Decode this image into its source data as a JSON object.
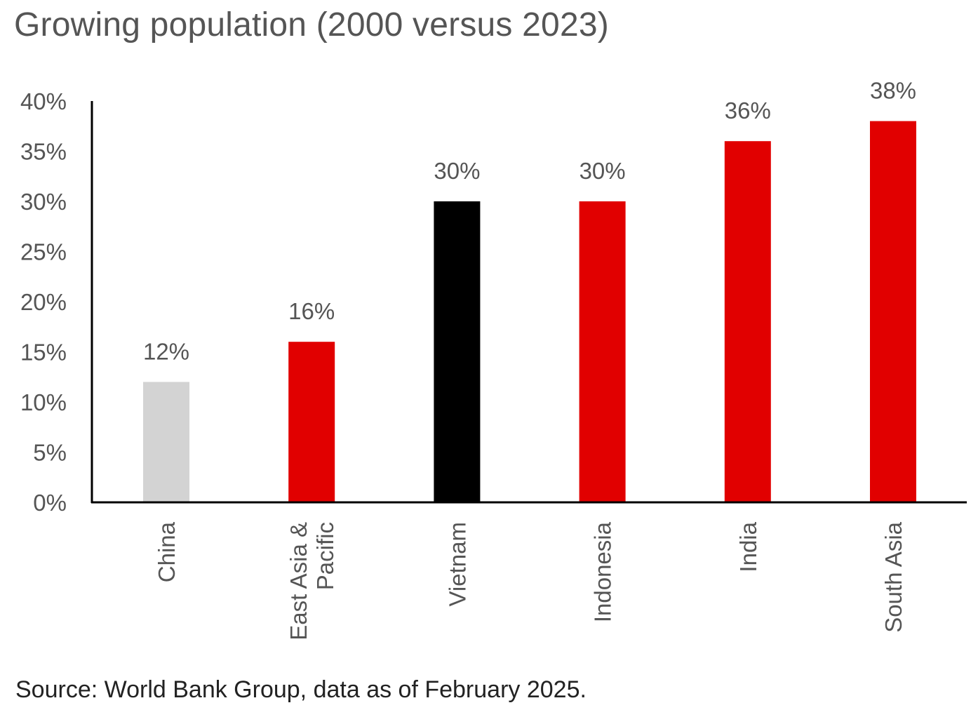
{
  "chart_data": {
    "type": "bar",
    "title": "Growing population (2000 versus 2023)",
    "categories": [
      [
        "China"
      ],
      [
        "East Asia &",
        "Pacific"
      ],
      [
        "Vietnam"
      ],
      [
        "Indonesia"
      ],
      [
        "India"
      ],
      [
        "South Asia"
      ]
    ],
    "values": [
      12,
      16,
      30,
      30,
      36,
      38
    ],
    "data_labels": [
      "12%",
      "16%",
      "30%",
      "30%",
      "36%",
      "38%"
    ],
    "bar_colors": [
      "#d3d3d3",
      "#e10000",
      "#000000",
      "#e10000",
      "#e10000",
      "#e10000"
    ],
    "ylim": [
      0,
      40
    ],
    "yticks": [
      0,
      5,
      10,
      15,
      20,
      25,
      30,
      35,
      40
    ],
    "ytick_labels": [
      "0%",
      "5%",
      "10%",
      "15%",
      "20%",
      "25%",
      "30%",
      "35%",
      "40%"
    ],
    "xlabel": "",
    "ylabel": "",
    "grid": false,
    "legend": "none"
  },
  "source": "Source: World Bank Group, data as of February 2025."
}
